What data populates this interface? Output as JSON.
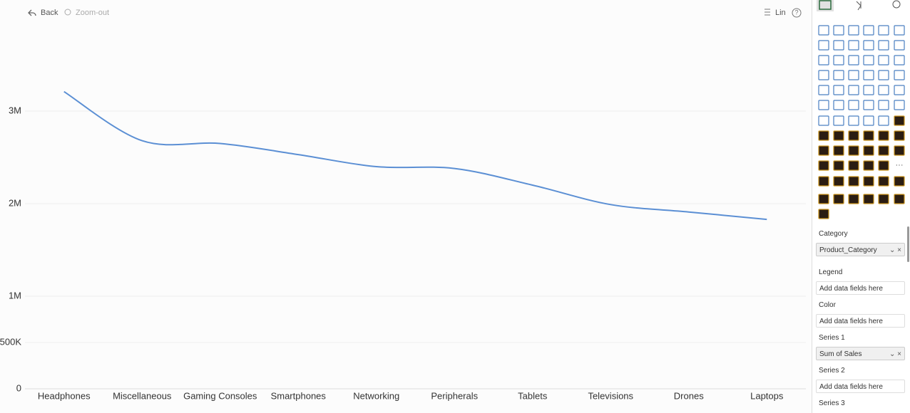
{
  "chart_data": {
    "type": "line",
    "categories": [
      "Headphones",
      "Miscellaneous",
      "Gaming Consoles",
      "Smartphones",
      "Networking",
      "Peripherals",
      "Tablets",
      "Televisions",
      "Drones",
      "Laptops"
    ],
    "series": [
      {
        "name": "Sum of Sales",
        "color": "#5b8fd4",
        "values": [
          3210000,
          2680000,
          2650000,
          2530000,
          2400000,
          2380000,
          2200000,
          1990000,
          1910000,
          1830000
        ]
      }
    ],
    "ylim": [
      0,
      4000000
    ],
    "yticks": [
      0,
      {
        "value": 500000,
        "label": "500K"
      },
      {
        "value": 1000000,
        "label": "1M"
      },
      {
        "value": 2000000,
        "label": "2M"
      },
      {
        "value": 3000000,
        "label": "3M"
      }
    ],
    "grid": true
  },
  "toolbar": {
    "back": "Back",
    "zoom_out": "Zoom-out",
    "scale": "Lin"
  },
  "pane": {
    "wells": [
      {
        "label": "Category",
        "field": "Product_Category"
      },
      {
        "label": "Legend",
        "field": "Add data fields here"
      },
      {
        "label": "Color",
        "field": "Add data fields here"
      },
      {
        "label": "Series 1",
        "field": "Sum of Sales"
      },
      {
        "label": "Series 2",
        "field": "Add data fields here"
      },
      {
        "label": "Series 3"
      }
    ]
  }
}
